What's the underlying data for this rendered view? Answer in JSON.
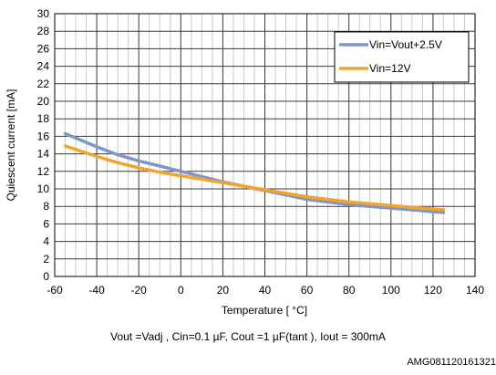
{
  "chart_data": {
    "type": "line",
    "title": "",
    "xlabel": "Temperature [ °C]",
    "ylabel": "Quiescent current [mA]",
    "xlim": [
      -60,
      140
    ],
    "ylim": [
      0,
      30
    ],
    "x_ticks": [
      -60,
      -40,
      -20,
      0,
      20,
      40,
      60,
      80,
      100,
      120,
      140
    ],
    "y_ticks": [
      0,
      2,
      4,
      6,
      8,
      10,
      12,
      14,
      16,
      18,
      20,
      22,
      24,
      26,
      28,
      30
    ],
    "grid": true,
    "minor_x_grid_step": 5,
    "legend_position": "top-right",
    "series": [
      {
        "name": "Vin=Vout+2.5V",
        "color": "#7f96c8",
        "x": [
          -55,
          -50,
          -40,
          -30,
          -20,
          -10,
          0,
          10,
          20,
          30,
          40,
          50,
          60,
          70,
          80,
          90,
          100,
          110,
          120,
          125
        ],
        "y": [
          16.3,
          15.8,
          14.8,
          13.9,
          13.2,
          12.6,
          12.0,
          11.4,
          10.8,
          10.3,
          9.8,
          9.3,
          8.8,
          8.5,
          8.2,
          8.0,
          7.8,
          7.6,
          7.4,
          7.3
        ]
      },
      {
        "name": "Vin=12V",
        "color": "#f2a52c",
        "x": [
          -55,
          -50,
          -40,
          -30,
          -20,
          -10,
          0,
          10,
          20,
          30,
          40,
          50,
          60,
          70,
          80,
          90,
          100,
          110,
          120,
          125
        ],
        "y": [
          14.9,
          14.5,
          13.7,
          13.0,
          12.4,
          11.9,
          11.5,
          11.1,
          10.7,
          10.3,
          9.9,
          9.5,
          9.1,
          8.8,
          8.5,
          8.3,
          8.1,
          7.9,
          7.7,
          7.6
        ]
      }
    ]
  },
  "caption": "Vout =Vadj , Cin=0.1 µF, Cout =1 µF(tant ), Iout  = 300mA",
  "figure_code": "AMG081120161321"
}
